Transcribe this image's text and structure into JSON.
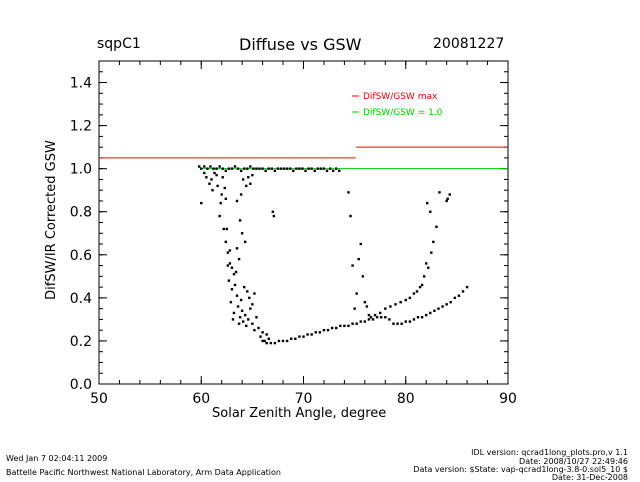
{
  "header": {
    "site": "sqpC1",
    "title": "Diffuse vs GSW",
    "date": "20081227"
  },
  "footer": {
    "left_line1": "Wed Jan  7 02:04:11 2009",
    "left_line2": "Battelle Pacific Northwest National Laboratory, Arm Data Application",
    "right_line1": "IDL version: qcrad1long_plots.pro,v 1.1",
    "right_line2": "Date: 2008/10/27 22:49:46",
    "right_line3": "Data version: $State: vap-qcrad1long-3.8-0.sol5_10 $",
    "right_line4": "Date: 31-Dec-2008"
  },
  "colors": {
    "max_line": "#ff0000",
    "unity_line": "#00cc00",
    "points": "#000000"
  },
  "chart_data": {
    "type": "scatter",
    "title": "Diffuse vs GSW",
    "xlabel": "Solar Zenith Angle, degree",
    "ylabel": "DifSW/IR Corrected GSW",
    "xlim": [
      50,
      90
    ],
    "ylim": [
      0.0,
      1.5
    ],
    "xticks": [
      50,
      60,
      70,
      80,
      90
    ],
    "yticks": [
      0.0,
      0.2,
      0.4,
      0.6,
      0.8,
      1.0,
      1.2,
      1.4
    ],
    "xtick_labels": [
      "50",
      "60",
      "70",
      "80",
      "90"
    ],
    "ytick_labels": [
      "0.0",
      "0.2",
      "0.4",
      "0.6",
      "0.8",
      "1.0",
      "1.2",
      "1.4"
    ],
    "legend": [
      {
        "label": "DifSW/GSW  max",
        "color": "#ff0000"
      },
      {
        "label": "DifSW/GSW = 1.0",
        "color": "#00cc00"
      }
    ],
    "legend_position": "top-right",
    "max_line_segments": [
      {
        "x": [
          50,
          75.1
        ],
        "y": 1.05
      },
      {
        "x": [
          75.1,
          90
        ],
        "y": 1.1
      }
    ],
    "unity_line": {
      "x": [
        60,
        90
      ],
      "y": 1.0
    },
    "series": [
      {
        "values": [
          [
            59.8,
            1.01
          ],
          [
            60.0,
            1.0
          ],
          [
            60.3,
            1.01
          ],
          [
            60.6,
            1.0
          ],
          [
            60.9,
            1.01
          ],
          [
            61.2,
            1.0
          ],
          [
            61.5,
            1.0
          ],
          [
            61.8,
            1.01
          ],
          [
            62.1,
            1.0
          ],
          [
            62.4,
            0.99
          ],
          [
            62.7,
            1.0
          ],
          [
            63.0,
            1.0
          ],
          [
            63.3,
            1.01
          ],
          [
            63.6,
            1.0
          ],
          [
            63.9,
            0.99
          ],
          [
            64.2,
            1.0
          ],
          [
            64.5,
            1.0
          ],
          [
            64.8,
            1.01
          ],
          [
            65.1,
            1.0
          ],
          [
            65.4,
            1.0
          ],
          [
            65.7,
            1.0
          ],
          [
            66.0,
            1.0
          ],
          [
            66.3,
            0.99
          ],
          [
            66.6,
            1.0
          ],
          [
            66.9,
            1.0
          ],
          [
            67.2,
            0.99
          ],
          [
            67.5,
            1.0
          ],
          [
            67.8,
            1.0
          ],
          [
            68.1,
            1.0
          ],
          [
            68.4,
            1.0
          ],
          [
            68.7,
            1.0
          ],
          [
            69.0,
            0.99
          ],
          [
            69.3,
            1.0
          ],
          [
            69.6,
            1.0
          ],
          [
            69.9,
            1.0
          ],
          [
            70.2,
            0.99
          ],
          [
            70.5,
            1.0
          ],
          [
            70.8,
            1.0
          ],
          [
            71.1,
            0.99
          ],
          [
            71.4,
            1.0
          ],
          [
            71.7,
            1.0
          ],
          [
            72.0,
            1.0
          ],
          [
            72.3,
            0.99
          ],
          [
            72.6,
            1.0
          ],
          [
            72.9,
            0.99
          ],
          [
            73.2,
            1.0
          ],
          [
            73.5,
            0.99
          ],
          [
            60.0,
            0.84
          ],
          [
            60.3,
            0.98
          ],
          [
            60.5,
            0.96
          ],
          [
            60.8,
            0.93
          ],
          [
            61.0,
            0.95
          ],
          [
            61.1,
            0.9
          ],
          [
            61.3,
            0.98
          ],
          [
            61.5,
            0.97
          ],
          [
            61.6,
            0.92
          ],
          [
            61.8,
            0.78
          ],
          [
            62.0,
            0.88
          ],
          [
            62.1,
            0.96
          ],
          [
            62.3,
            0.91
          ],
          [
            62.4,
            0.86
          ],
          [
            62.5,
            0.72
          ],
          [
            62.6,
            0.55
          ],
          [
            62.7,
            0.48
          ],
          [
            62.8,
            0.62
          ],
          [
            62.9,
            0.38
          ],
          [
            63.0,
            0.44
          ],
          [
            63.1,
            0.3
          ],
          [
            63.2,
            0.33
          ],
          [
            63.3,
            0.46
          ],
          [
            63.4,
            0.52
          ],
          [
            63.5,
            0.41
          ],
          [
            63.6,
            0.36
          ],
          [
            63.7,
            0.28
          ],
          [
            63.8,
            0.31
          ],
          [
            63.9,
            0.39
          ],
          [
            64.0,
            0.34
          ],
          [
            64.1,
            0.29
          ],
          [
            64.2,
            0.45
          ],
          [
            64.3,
            0.32
          ],
          [
            64.4,
            0.27
          ],
          [
            64.6,
            0.3
          ],
          [
            64.8,
            0.35
          ],
          [
            65.0,
            0.28
          ],
          [
            65.2,
            0.25
          ],
          [
            65.4,
            0.31
          ],
          [
            65.6,
            0.26
          ],
          [
            65.8,
            0.22
          ],
          [
            66.0,
            0.24
          ],
          [
            66.2,
            0.2
          ],
          [
            66.4,
            0.23
          ],
          [
            66.6,
            0.21
          ],
          [
            67.0,
            0.8
          ],
          [
            67.1,
            0.78
          ],
          [
            61.9,
            0.84
          ],
          [
            62.2,
            0.72
          ],
          [
            62.4,
            0.66
          ],
          [
            62.6,
            0.61
          ],
          [
            62.8,
            0.56
          ],
          [
            63.0,
            0.54
          ],
          [
            63.2,
            0.51
          ],
          [
            63.5,
            0.63
          ],
          [
            63.7,
            0.58
          ],
          [
            63.9,
            0.88
          ],
          [
            64.1,
            0.95
          ],
          [
            64.4,
            0.92
          ],
          [
            64.6,
            0.96
          ],
          [
            64.8,
            0.93
          ],
          [
            65.0,
            0.97
          ],
          [
            63.5,
            0.85
          ],
          [
            63.8,
            0.76
          ],
          [
            64.0,
            0.7
          ],
          [
            64.3,
            0.66
          ],
          [
            64.5,
            0.43
          ],
          [
            64.7,
            0.4
          ],
          [
            65.0,
            0.37
          ],
          [
            65.2,
            0.42
          ],
          [
            66.0,
            0.2
          ],
          [
            66.4,
            0.19
          ],
          [
            66.8,
            0.19
          ],
          [
            67.2,
            0.19
          ],
          [
            67.6,
            0.2
          ],
          [
            68.0,
            0.2
          ],
          [
            68.4,
            0.2
          ],
          [
            68.8,
            0.21
          ],
          [
            69.2,
            0.21
          ],
          [
            69.6,
            0.22
          ],
          [
            70.0,
            0.22
          ],
          [
            70.4,
            0.23
          ],
          [
            70.8,
            0.23
          ],
          [
            71.2,
            0.24
          ],
          [
            71.6,
            0.24
          ],
          [
            72.0,
            0.25
          ],
          [
            72.4,
            0.25
          ],
          [
            72.8,
            0.26
          ],
          [
            73.2,
            0.26
          ],
          [
            73.6,
            0.27
          ],
          [
            74.0,
            0.27
          ],
          [
            74.4,
            0.27
          ],
          [
            74.8,
            0.28
          ],
          [
            75.2,
            0.28
          ],
          [
            75.6,
            0.29
          ],
          [
            76.0,
            0.29
          ],
          [
            76.4,
            0.3
          ],
          [
            76.8,
            0.3
          ],
          [
            77.2,
            0.31
          ],
          [
            77.6,
            0.31
          ],
          [
            78.0,
            0.31
          ],
          [
            78.4,
            0.3
          ],
          [
            78.8,
            0.28
          ],
          [
            79.2,
            0.28
          ],
          [
            79.6,
            0.28
          ],
          [
            80.0,
            0.29
          ],
          [
            80.4,
            0.29
          ],
          [
            80.8,
            0.3
          ],
          [
            81.2,
            0.31
          ],
          [
            81.6,
            0.31
          ],
          [
            82.0,
            0.32
          ],
          [
            82.4,
            0.33
          ],
          [
            82.8,
            0.34
          ],
          [
            83.2,
            0.35
          ],
          [
            83.6,
            0.36
          ],
          [
            84.0,
            0.37
          ],
          [
            84.4,
            0.38
          ],
          [
            84.8,
            0.4
          ],
          [
            85.2,
            0.41
          ],
          [
            85.6,
            0.43
          ],
          [
            86.0,
            0.45
          ],
          [
            74.4,
            0.89
          ],
          [
            74.6,
            0.78
          ],
          [
            74.8,
            0.55
          ],
          [
            75.0,
            0.35
          ],
          [
            75.2,
            0.42
          ],
          [
            75.4,
            0.58
          ],
          [
            75.6,
            0.65
          ],
          [
            75.8,
            0.5
          ],
          [
            76.0,
            0.38
          ],
          [
            76.2,
            0.36
          ],
          [
            76.4,
            0.32
          ],
          [
            76.6,
            0.31
          ],
          [
            77.0,
            0.32
          ],
          [
            77.5,
            0.33
          ],
          [
            78.0,
            0.35
          ],
          [
            78.5,
            0.36
          ],
          [
            79.0,
            0.37
          ],
          [
            79.5,
            0.38
          ],
          [
            80.0,
            0.39
          ],
          [
            80.4,
            0.4
          ],
          [
            80.8,
            0.42
          ],
          [
            81.1,
            0.43
          ],
          [
            81.4,
            0.45
          ],
          [
            81.6,
            0.46
          ],
          [
            81.8,
            0.5
          ],
          [
            82.0,
            0.56
          ],
          [
            82.2,
            0.54
          ],
          [
            82.5,
            0.61
          ],
          [
            82.7,
            0.66
          ],
          [
            83.0,
            0.73
          ],
          [
            82.1,
            0.84
          ],
          [
            82.4,
            0.8
          ],
          [
            83.3,
            0.89
          ],
          [
            84.0,
            0.85
          ],
          [
            84.1,
            0.86
          ],
          [
            84.3,
            0.88
          ]
        ]
      }
    ]
  }
}
